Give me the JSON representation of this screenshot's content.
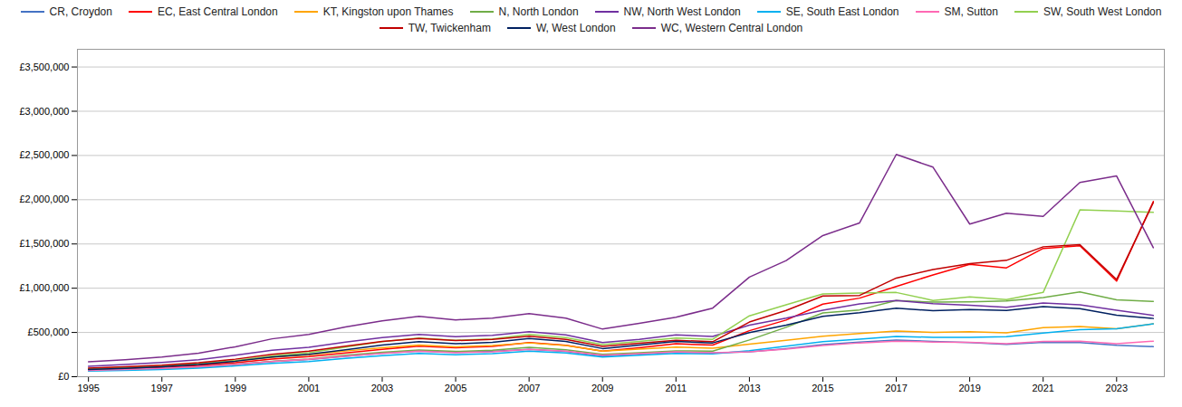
{
  "chart_data": {
    "type": "line",
    "x": [
      1995,
      1996,
      1997,
      1998,
      1999,
      2000,
      2001,
      2002,
      2003,
      2004,
      2005,
      2006,
      2007,
      2008,
      2009,
      2010,
      2011,
      2012,
      2013,
      2014,
      2015,
      2016,
      2017,
      2018,
      2019,
      2020,
      2021,
      2022,
      2023,
      2024
    ],
    "series": [
      {
        "name": "CR, Croydon",
        "color": "#4472C4",
        "values": [
          75000,
          85000,
          100000,
          115000,
          140000,
          170000,
          195000,
          230000,
          265000,
          290000,
          275000,
          285000,
          310000,
          285000,
          235000,
          258000,
          278000,
          268000,
          282000,
          318000,
          362000,
          392000,
          415000,
          398000,
          385000,
          365000,
          388000,
          385000,
          355000,
          340000
        ]
      },
      {
        "name": "EC, East Central London",
        "color": "#FF0000",
        "values": [
          80000,
          92000,
          108000,
          128000,
          158000,
          200000,
          228000,
          268000,
          310000,
          345000,
          328000,
          342000,
          385000,
          355000,
          288000,
          328000,
          372000,
          358000,
          520000,
          640000,
          820000,
          888000,
          1020000,
          1150000,
          1270000,
          1230000,
          1450000,
          1480000,
          1080000,
          1980000
        ]
      },
      {
        "name": "KT, Kingston upon Thames",
        "color": "#FFA500",
        "values": [
          92000,
          105000,
          122000,
          145000,
          178000,
          220000,
          248000,
          290000,
          328000,
          358000,
          338000,
          352000,
          382000,
          352000,
          288000,
          312000,
          335000,
          322000,
          368000,
          412000,
          458000,
          488000,
          515000,
          502000,
          508000,
          495000,
          555000,
          568000,
          542000,
          598000
        ]
      },
      {
        "name": "N, North London",
        "color": "#70AD47",
        "values": [
          68000,
          78000,
          90000,
          108000,
          138000,
          175000,
          200000,
          242000,
          275000,
          302000,
          285000,
          298000,
          332000,
          305000,
          252000,
          272000,
          292000,
          288000,
          415000,
          558000,
          720000,
          755000,
          862000,
          842000,
          845000,
          855000,
          895000,
          958000,
          868000,
          850000
        ]
      },
      {
        "name": "NW, North West London",
        "color": "#7030A0",
        "values": [
          118000,
          138000,
          162000,
          192000,
          242000,
          298000,
          332000,
          392000,
          442000,
          478000,
          452000,
          468000,
          508000,
          472000,
          385000,
          422000,
          472000,
          455000,
          582000,
          662000,
          752000,
          822000,
          862000,
          825000,
          808000,
          785000,
          832000,
          812000,
          752000,
          692000
        ]
      },
      {
        "name": "SE, South East London",
        "color": "#00B0F0",
        "values": [
          63000,
          72000,
          82000,
          98000,
          122000,
          152000,
          172000,
          208000,
          238000,
          262000,
          248000,
          260000,
          288000,
          268000,
          222000,
          242000,
          262000,
          258000,
          295000,
          345000,
          395000,
          425000,
          455000,
          445000,
          445000,
          452000,
          492000,
          532000,
          542000,
          598000
        ]
      },
      {
        "name": "SM, Sutton",
        "color": "#FF69B4",
        "values": [
          72000,
          82000,
          94000,
          112000,
          138000,
          172000,
          196000,
          232000,
          262000,
          288000,
          272000,
          282000,
          308000,
          288000,
          242000,
          260000,
          280000,
          272000,
          282000,
          312000,
          352000,
          382000,
          402000,
          392000,
          388000,
          372000,
          398000,
          402000,
          372000,
          402000
        ]
      },
      {
        "name": "SW, South West London",
        "color": "#92D050",
        "values": [
          88000,
          102000,
          118000,
          145000,
          182000,
          235000,
          272000,
          335000,
          395000,
          438000,
          412000,
          428000,
          478000,
          442000,
          362000,
          398000,
          438000,
          422000,
          688000,
          812000,
          935000,
          945000,
          952000,
          862000,
          902000,
          872000,
          952000,
          1885000,
          1872000,
          1858000
        ]
      },
      {
        "name": "TW, Twickenham",
        "color": "#C00000",
        "values": [
          98000,
          112000,
          130000,
          158000,
          198000,
          252000,
          288000,
          345000,
          398000,
          432000,
          408000,
          422000,
          458000,
          422000,
          342000,
          378000,
          412000,
          395000,
          618000,
          748000,
          912000,
          918000,
          1115000,
          1212000,
          1278000,
          1315000,
          1468000,
          1492000,
          1098000,
          1968000
        ]
      },
      {
        "name": "W, West London",
        "color": "#002060",
        "values": [
          82000,
          95000,
          112000,
          138000,
          175000,
          222000,
          252000,
          305000,
          358000,
          395000,
          372000,
          388000,
          432000,
          398000,
          318000,
          358000,
          398000,
          382000,
          498000,
          582000,
          682000,
          722000,
          775000,
          745000,
          758000,
          748000,
          792000,
          768000,
          695000,
          658000
        ]
      },
      {
        "name": "WC, Western Central London",
        "color": "#7B2D8B",
        "values": [
          168000,
          192000,
          222000,
          265000,
          338000,
          428000,
          478000,
          562000,
          632000,
          682000,
          642000,
          662000,
          712000,
          662000,
          538000,
          602000,
          672000,
          775000,
          1125000,
          1312000,
          1595000,
          1738000,
          2512000,
          2368000,
          1725000,
          1848000,
          1812000,
          2195000,
          2268000,
          1458000
        ]
      }
    ],
    "xlim": [
      1994.7,
      2024.3
    ],
    "xticks": [
      1995,
      1997,
      1999,
      2001,
      2003,
      2005,
      2007,
      2009,
      2011,
      2013,
      2015,
      2017,
      2019,
      2021,
      2023
    ],
    "ylim": [
      0,
      3700000
    ],
    "yticks": [
      {
        "value": 0,
        "label": "£0"
      },
      {
        "value": 500000,
        "label": "£500,000"
      },
      {
        "value": 1000000,
        "label": "£1,000,000"
      },
      {
        "value": 1500000,
        "label": "£1,500,000"
      },
      {
        "value": 2000000,
        "label": "£2,000,000"
      },
      {
        "value": 2500000,
        "label": "£2,500,000"
      },
      {
        "value": 3000000,
        "label": "£3,000,000"
      },
      {
        "value": 3500000,
        "label": "£3,500,000"
      }
    ],
    "grid": true,
    "legend": "top"
  }
}
